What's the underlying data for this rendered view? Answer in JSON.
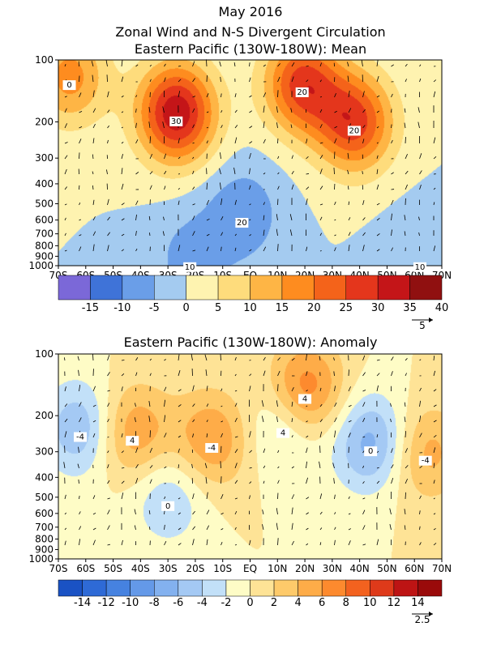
{
  "chart_data": [
    {
      "type": "heatmap",
      "title": "May 2016",
      "subtitle_lines": [
        "Zonal Wind and N-S Divergent Circulation",
        "Eastern Pacific (130W-180W): Mean"
      ],
      "x_tick_labels": [
        "70S",
        "60S",
        "50S",
        "40S",
        "30S",
        "20S",
        "10S",
        "EQ",
        "10N",
        "20N",
        "30N",
        "40N",
        "50N",
        "60N",
        "70N"
      ],
      "x_values": [
        -70,
        -60,
        -50,
        -40,
        -30,
        -20,
        -10,
        0,
        10,
        20,
        30,
        40,
        50,
        60,
        70
      ],
      "y_tick_labels": [
        "100",
        "200",
        "300",
        "400",
        "500",
        "600",
        "700",
        "800",
        "900",
        "1000"
      ],
      "y_values": [
        100,
        200,
        300,
        400,
        500,
        600,
        700,
        800,
        900,
        1000
      ],
      "y_scale": "log",
      "xlim": [
        -70,
        70
      ],
      "ylim": [
        1000,
        100
      ],
      "contour_labels": [
        "30",
        "20",
        "20",
        "0",
        "20",
        "10",
        "10"
      ],
      "colorbar": {
        "labels": [
          "-15",
          "-10",
          "-5",
          "0",
          "5",
          "10",
          "15",
          "20",
          "25",
          "30",
          "35",
          "40"
        ],
        "colors": [
          "#7b68d8",
          "#3f73d8",
          "#6a9ee8",
          "#a4cbf0",
          "#fef3b0",
          "#fedc7c",
          "#feb545",
          "#fe8c1f",
          "#f4631a",
          "#e4361c",
          "#c41518",
          "#901010"
        ]
      },
      "reference_vector": "5",
      "features": [
        {
          "type": "max",
          "x": -27,
          "y": 180,
          "value": 34
        },
        {
          "type": "max",
          "x": 19,
          "y": 130,
          "value": 27
        },
        {
          "type": "max",
          "x": 38,
          "y": 200,
          "value": 27
        },
        {
          "type": "max",
          "x": -66,
          "y": 120,
          "value": 17
        },
        {
          "type": "min",
          "x": -3,
          "y": 560,
          "value": -9
        },
        {
          "type": "min",
          "x": -22,
          "y": 920,
          "value": -7
        },
        {
          "type": "min",
          "x": 62,
          "y": 920,
          "value": -4
        }
      ]
    },
    {
      "type": "heatmap",
      "title": "Eastern Pacific (130W-180W): Anomaly",
      "x_tick_labels": [
        "70S",
        "60S",
        "50S",
        "40S",
        "30S",
        "20S",
        "10S",
        "EQ",
        "10N",
        "20N",
        "30N",
        "40N",
        "50N",
        "60N",
        "70N"
      ],
      "x_values": [
        -70,
        -60,
        -50,
        -40,
        -30,
        -20,
        -10,
        0,
        10,
        20,
        30,
        40,
        50,
        60,
        70
      ],
      "y_tick_labels": [
        "100",
        "200",
        "300",
        "400",
        "500",
        "600",
        "700",
        "800",
        "900",
        "1000"
      ],
      "y_values": [
        100,
        200,
        300,
        400,
        500,
        600,
        700,
        800,
        900,
        1000
      ],
      "y_scale": "log",
      "xlim": [
        -70,
        70
      ],
      "ylim": [
        1000,
        100
      ],
      "contour_labels": [
        "-4",
        "4",
        "0",
        "-4",
        "4",
        "4",
        "0",
        "-4"
      ],
      "colorbar": {
        "labels": [
          "-14",
          "-12",
          "-10",
          "-8",
          "-6",
          "-4",
          "-2",
          "0",
          "2",
          "4",
          "6",
          "8",
          "10",
          "12",
          "14"
        ],
        "colors": [
          "#1a52c4",
          "#2e6ad6",
          "#4682e0",
          "#6499e8",
          "#83b1ef",
          "#a4c9f4",
          "#c2e0f8",
          "#fefcc6",
          "#fee396",
          "#feca6a",
          "#feac48",
          "#fd8a2e",
          "#f3621f",
          "#de3a1a",
          "#bd1414",
          "#9a0a0a"
        ]
      },
      "reference_vector": "2.5",
      "features": [
        {
          "type": "min",
          "x": -62,
          "y": 230,
          "value": -6
        },
        {
          "type": "max",
          "x": -43,
          "y": 240,
          "value": 6
        },
        {
          "type": "min",
          "x": -30,
          "y": 500,
          "value": -4
        },
        {
          "type": "max",
          "x": -14,
          "y": 260,
          "value": 6
        },
        {
          "type": "min",
          "x": 12,
          "y": 220,
          "value": -4
        },
        {
          "type": "max",
          "x": 20,
          "y": 150,
          "value": 8
        },
        {
          "type": "min",
          "x": 44,
          "y": 270,
          "value": -7
        },
        {
          "type": "max",
          "x": 64,
          "y": 300,
          "value": 5
        }
      ]
    }
  ]
}
